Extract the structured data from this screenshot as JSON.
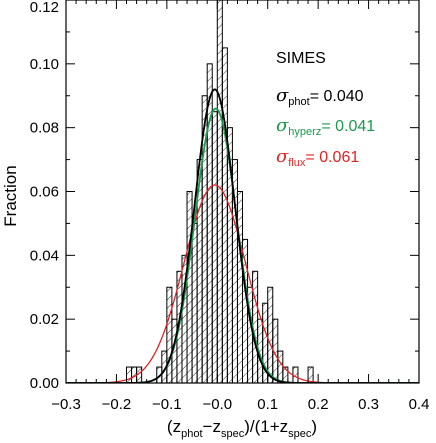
{
  "chart_data": {
    "type": "bar",
    "subtype": "histogram",
    "title": "",
    "ylabel": "Fraction",
    "xlabel_parts": {
      "open": "(z",
      "sub1": "phot",
      "minus": "−z",
      "sub2": "spec",
      "mid": ")/(1+z",
      "sub3": "spec",
      "close": ")"
    },
    "xlim": [
      -0.3,
      0.4
    ],
    "ylim": [
      0,
      0.12
    ],
    "x_ticks": [
      -0.3,
      -0.2,
      -0.1,
      0.0,
      0.1,
      0.2,
      0.3,
      0.4
    ],
    "x_tick_labels": [
      "−0.3",
      "−0.2",
      "−0.1",
      "−0.0",
      "0.1",
      "0.2",
      "0.3",
      "0.4"
    ],
    "y_ticks": [
      0.0,
      0.02,
      0.04,
      0.06,
      0.08,
      0.1,
      0.12
    ],
    "y_tick_labels": [
      "0.00",
      "0.02",
      "0.04",
      "0.06",
      "0.08",
      "0.10",
      "0.12"
    ],
    "bin_width": 0.01,
    "bin_start": -0.18,
    "bin_values": [
      0.005,
      0.005,
      0.005,
      0.0,
      0.0,
      0.0,
      0.005,
      0.01,
      0.03,
      0.02,
      0.035,
      0.04,
      0.06,
      0.05,
      0.07,
      0.09,
      0.1,
      0.085,
      0.13,
      0.105,
      0.08,
      0.07,
      0.06,
      0.045,
      0.03,
      0.035,
      0.02,
      0.025,
      0.03,
      0.02,
      0.01,
      0.005,
      0.0,
      0.005,
      0.0,
      0.0,
      0.005
    ],
    "curves": [
      {
        "label_symbol": "σ",
        "label_sub": "phot",
        "value_text": "= 0.040",
        "color": "#000000",
        "mu": -0.005,
        "sigma": 0.04,
        "peak": 0.092
      },
      {
        "label_symbol": "σ",
        "label_sub": "hyperz",
        "value_text": "= 0.041",
        "color": "#1a9a4a",
        "mu": -0.003,
        "sigma": 0.041,
        "peak": 0.086
      },
      {
        "label_symbol": "σ",
        "label_sub": "flux",
        "value_text": "= 0.061",
        "color": "#e32222",
        "mu": -0.005,
        "sigma": 0.061,
        "peak": 0.062
      }
    ],
    "annotation_title": "SIMES",
    "colors": {
      "axis": "#000000",
      "hatch": "#000000"
    }
  }
}
